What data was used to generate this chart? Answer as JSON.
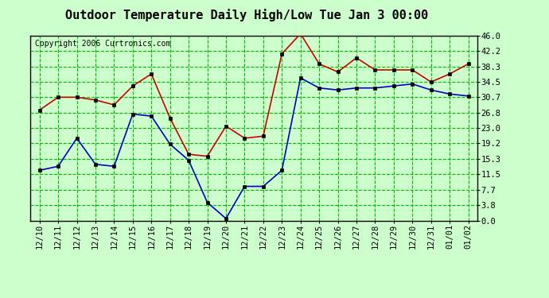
{
  "title": "Outdoor Temperature Daily High/Low Tue Jan 3 00:00",
  "copyright": "Copyright 2006 Curtronics.com",
  "labels": [
    "12/10",
    "12/11",
    "12/12",
    "12/13",
    "12/14",
    "12/15",
    "12/16",
    "12/17",
    "12/18",
    "12/19",
    "12/20",
    "12/21",
    "12/22",
    "12/23",
    "12/24",
    "12/25",
    "12/26",
    "12/27",
    "12/28",
    "12/29",
    "12/30",
    "12/31",
    "01/01",
    "01/02"
  ],
  "high_values": [
    27.5,
    30.7,
    30.7,
    30.0,
    28.8,
    33.5,
    36.5,
    25.5,
    16.5,
    16.0,
    23.5,
    20.5,
    21.0,
    41.5,
    46.5,
    39.0,
    37.0,
    40.5,
    37.5,
    37.5,
    37.5,
    34.5,
    36.5,
    39.0
  ],
  "low_values": [
    12.5,
    13.5,
    20.5,
    14.0,
    13.5,
    26.5,
    26.0,
    19.0,
    15.0,
    4.5,
    0.5,
    8.5,
    8.5,
    12.5,
    35.5,
    33.0,
    32.5,
    33.0,
    33.0,
    33.5,
    34.0,
    32.5,
    31.5,
    31.0
  ],
  "high_color": "#cc0000",
  "low_color": "#0000cc",
  "bg_color": "#ccffcc",
  "grid_color": "#00bb00",
  "border_color": "#000000",
  "yticks": [
    0.0,
    3.8,
    7.7,
    11.5,
    15.3,
    19.2,
    23.0,
    26.8,
    30.7,
    34.5,
    38.3,
    42.2,
    46.0
  ],
  "ymin": 0.0,
  "ymax": 46.0,
  "title_fontsize": 11,
  "axis_fontsize": 7.5,
  "copyright_fontsize": 7
}
